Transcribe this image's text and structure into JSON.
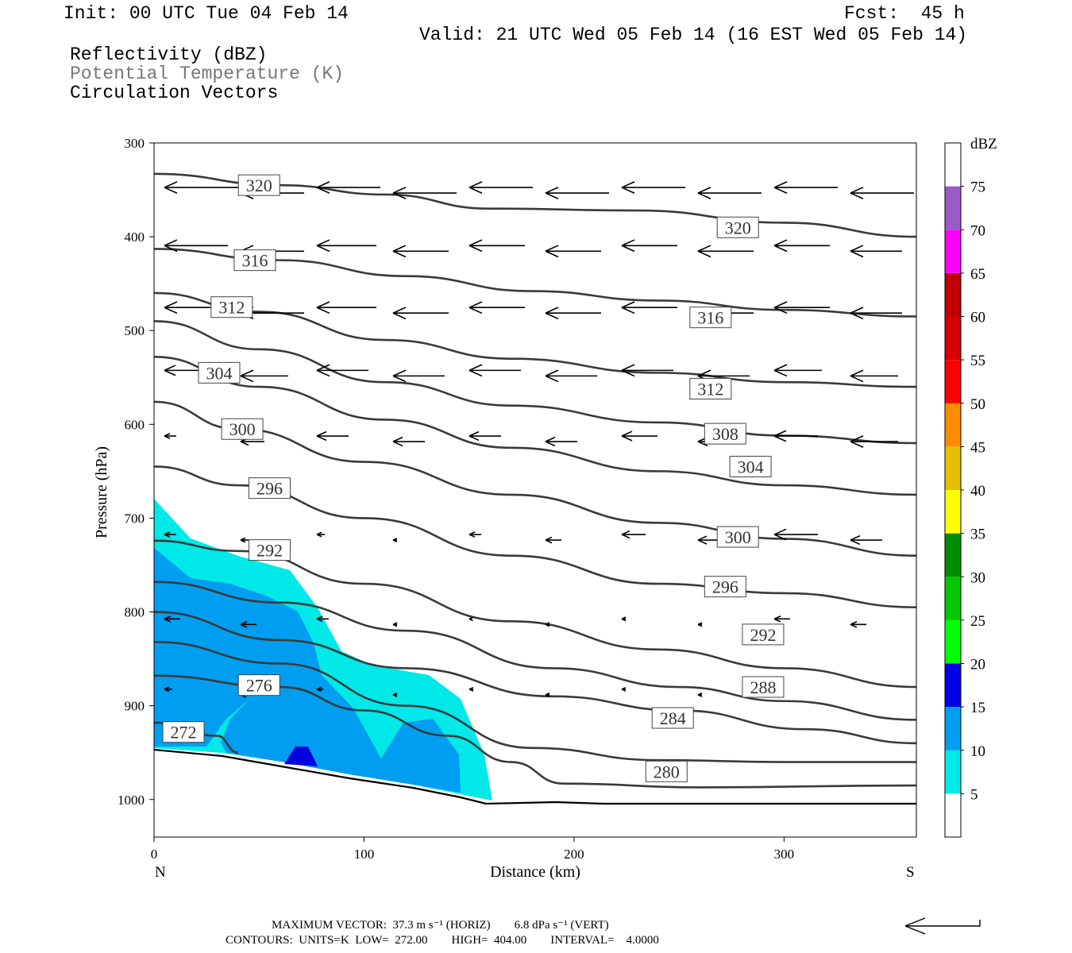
{
  "header": {
    "init": "Init: 00 UTC Tue 04 Feb 14",
    "fcst": "Fcst:  45 h",
    "valid": "Valid: 21 UTC Wed 05 Feb 14 (16 EST Wed 05 Feb 14)",
    "fields": [
      "Reflectivity (dBZ)",
      "Potential Temperature (K)",
      "Circulation Vectors"
    ]
  },
  "chart_data": {
    "type": "cross-section",
    "xlabel": "Distance (km)",
    "ylabel": "Pressure (hPa)",
    "xlim": [
      0,
      363
    ],
    "ylim": [
      1040,
      300
    ],
    "x_ticks": [
      "0",
      "100",
      "200",
      "300"
    ],
    "y_ticks": [
      "300",
      "400",
      "500",
      "600",
      "700",
      "800",
      "900",
      "1000"
    ],
    "end_labels": {
      "left": "N",
      "right": "S"
    },
    "colorbar": {
      "title": "dBZ",
      "levels": [
        "5",
        "10",
        "15",
        "20",
        "25",
        "30",
        "35",
        "40",
        "45",
        "50",
        "55",
        "60",
        "65",
        "70",
        "75"
      ],
      "colors": [
        "#00e8e8",
        "#009ef0",
        "#0000e8",
        "#00ff00",
        "#00c800",
        "#008c00",
        "#ffff00",
        "#e6be00",
        "#ff8c00",
        "#ff0000",
        "#d60000",
        "#c00000",
        "#ff00ff",
        "#9a5ac8",
        "#ffffff"
      ]
    },
    "theta_contours": [
      {
        "value": 320,
        "p": [
          [
            0,
            333
          ],
          [
            60,
            345
          ],
          [
            110,
            355
          ],
          [
            160,
            370
          ],
          [
            230,
            372
          ],
          [
            300,
            385
          ],
          [
            363,
            400
          ]
        ],
        "labels": [
          [
            50,
            345
          ],
          [
            278,
            390
          ]
        ]
      },
      {
        "value": 316,
        "p": [
          [
            0,
            413
          ],
          [
            60,
            425
          ],
          [
            120,
            442
          ],
          [
            180,
            458
          ],
          [
            240,
            468
          ],
          [
            300,
            478
          ],
          [
            363,
            485
          ]
        ],
        "labels": [
          [
            48,
            425
          ],
          [
            265,
            486
          ]
        ]
      },
      {
        "value": 312,
        "p": [
          [
            0,
            460
          ],
          [
            50,
            480
          ],
          [
            110,
            510
          ],
          [
            170,
            530
          ],
          [
            240,
            545
          ],
          [
            300,
            555
          ],
          [
            363,
            560
          ]
        ],
        "labels": [
          [
            37,
            475
          ],
          [
            265,
            562
          ]
        ]
      },
      {
        "value": 308,
        "p": [
          [
            0,
            490
          ],
          [
            50,
            520
          ],
          [
            110,
            555
          ],
          [
            170,
            580
          ],
          [
            240,
            598
          ],
          [
            300,
            612
          ],
          [
            363,
            620
          ]
        ],
        "labels": [
          [
            272,
            610
          ]
        ]
      },
      {
        "value": 304,
        "p": [
          [
            0,
            528
          ],
          [
            50,
            560
          ],
          [
            110,
            595
          ],
          [
            170,
            625
          ],
          [
            240,
            650
          ],
          [
            300,
            665
          ],
          [
            363,
            675
          ]
        ],
        "labels": [
          [
            31,
            545
          ],
          [
            284,
            645
          ]
        ]
      },
      {
        "value": 300,
        "p": [
          [
            0,
            576
          ],
          [
            40,
            605
          ],
          [
            100,
            640
          ],
          [
            170,
            675
          ],
          [
            240,
            705
          ],
          [
            300,
            722
          ],
          [
            363,
            740
          ]
        ],
        "labels": [
          [
            42,
            605
          ],
          [
            278,
            720
          ]
        ]
      },
      {
        "value": 296,
        "p": [
          [
            0,
            645
          ],
          [
            40,
            665
          ],
          [
            100,
            700
          ],
          [
            170,
            740
          ],
          [
            240,
            770
          ],
          [
            300,
            780
          ],
          [
            363,
            795
          ]
        ],
        "labels": [
          [
            55,
            668
          ],
          [
            272,
            773
          ]
        ]
      },
      {
        "value": 292,
        "p": [
          [
            0,
            724
          ],
          [
            40,
            735
          ],
          [
            100,
            770
          ],
          [
            170,
            810
          ],
          [
            240,
            840
          ],
          [
            300,
            860
          ],
          [
            363,
            880
          ]
        ],
        "labels": [
          [
            55,
            734
          ],
          [
            290,
            824
          ]
        ]
      },
      {
        "value": 288,
        "p": [
          [
            0,
            768
          ],
          [
            60,
            790
          ],
          [
            120,
            820
          ],
          [
            190,
            860
          ],
          [
            250,
            880
          ],
          [
            300,
            895
          ],
          [
            363,
            915
          ]
        ],
        "labels": [
          [
            290,
            880
          ]
        ]
      },
      {
        "value": 284,
        "p": [
          [
            0,
            800
          ],
          [
            60,
            830
          ],
          [
            120,
            860
          ],
          [
            190,
            890
          ],
          [
            250,
            905
          ],
          [
            310,
            925
          ],
          [
            363,
            940
          ]
        ],
        "labels": [
          [
            247,
            913
          ]
        ]
      },
      {
        "value": 280,
        "p": [
          [
            0,
            832
          ],
          [
            60,
            855
          ],
          [
            120,
            900
          ],
          [
            180,
            945
          ],
          [
            240,
            958
          ],
          [
            300,
            960
          ],
          [
            363,
            960
          ]
        ],
        "labels": [
          [
            244,
            970
          ]
        ]
      },
      {
        "value": 276,
        "p": [
          [
            0,
            868
          ],
          [
            60,
            880
          ],
          [
            100,
            905
          ],
          [
            140,
            932
          ],
          [
            170,
            960
          ],
          [
            195,
            983
          ],
          [
            260,
            987
          ],
          [
            363,
            985
          ]
        ],
        "labels": [
          [
            50,
            878
          ]
        ]
      },
      {
        "value": 272,
        "p": [
          [
            0,
            918
          ],
          [
            30,
            932
          ],
          [
            40,
            950
          ]
        ],
        "labels": [
          [
            14,
            928
          ]
        ]
      }
    ],
    "max_vector": "MAXIMUM VECTOR:  37.3 m s⁻¹ (HORIZ)        6.8 dPa s⁻¹ (VERT)",
    "contour_info": "CONTOURS:  UNITS=K  LOW=  272.00        HIGH=  404.00        INTERVAL=    4.0000"
  }
}
